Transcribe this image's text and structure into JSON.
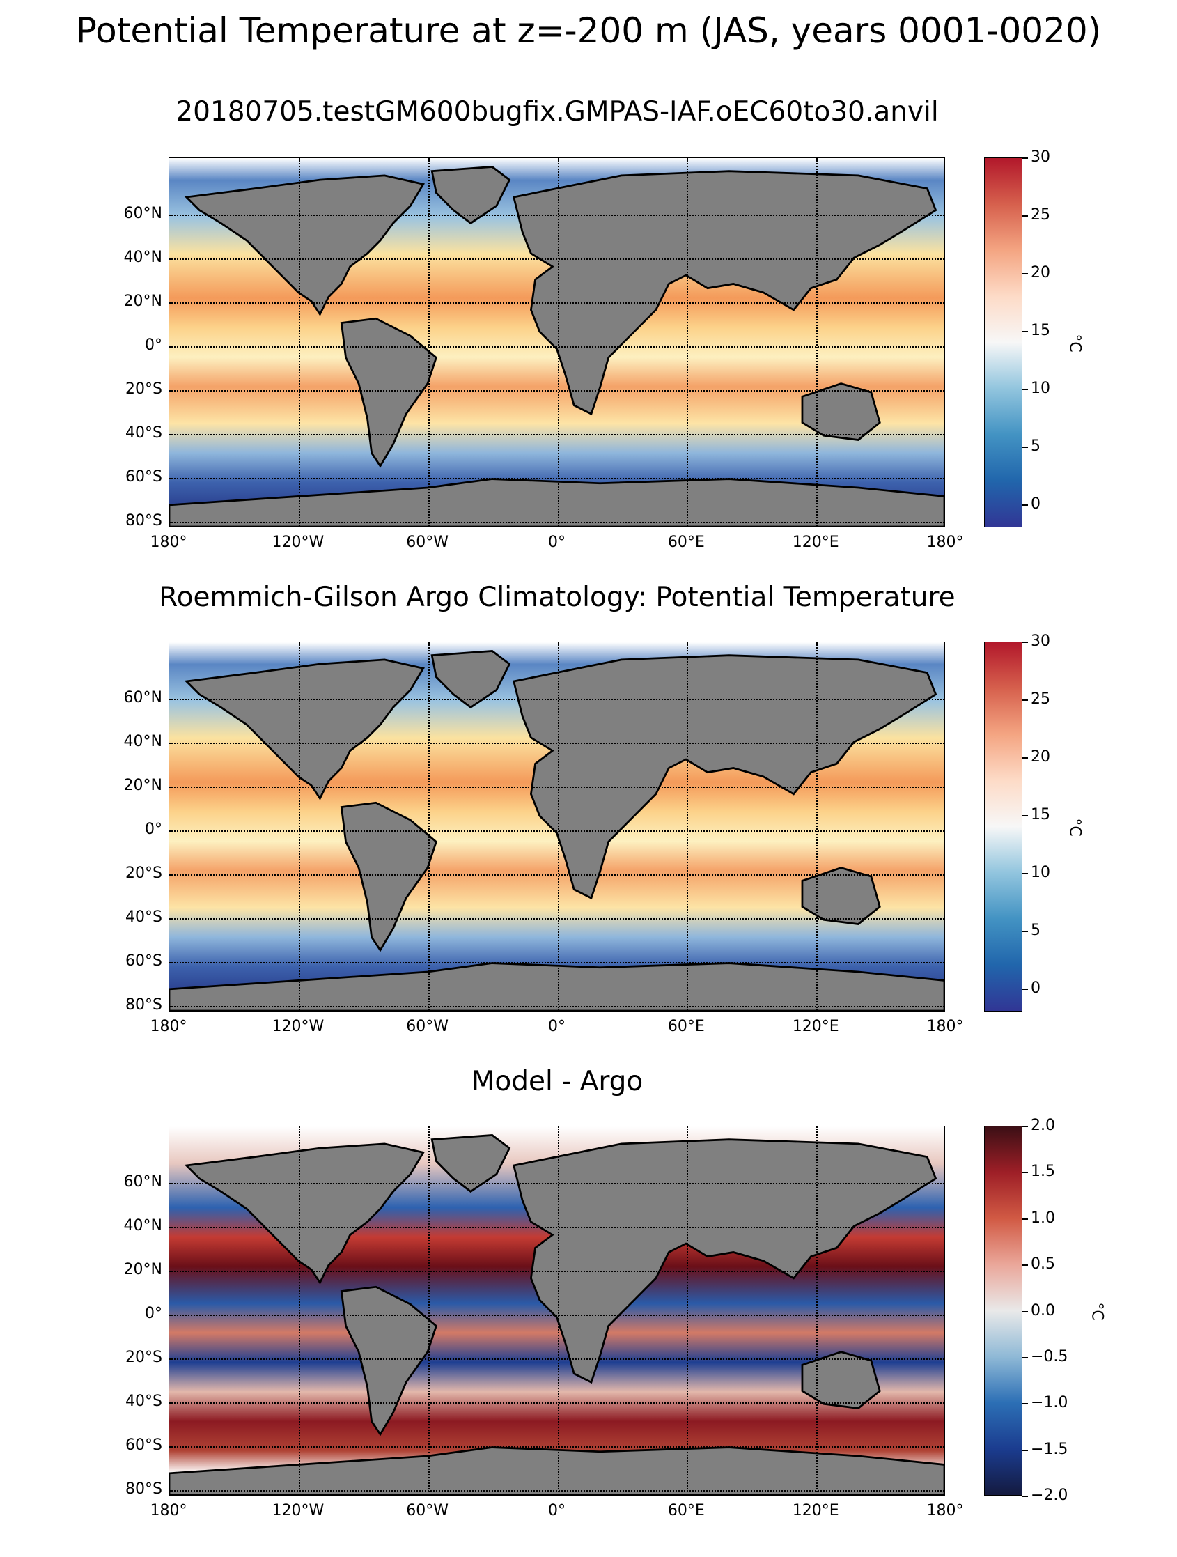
{
  "suptitle": "Potential Temperature at z=-200 m (JAS, years 0001-0020)",
  "panels": [
    {
      "title": "20180705.testGM600bugfix.GMPAS-IAF.oEC60to30.anvil",
      "colormap": "temperature",
      "colorbar": {
        "ticks": [
          "30",
          "25",
          "20",
          "15",
          "10",
          "5",
          "0"
        ],
        "unit": "°C",
        "colors": [
          "#b2182b",
          "#d6604d",
          "#f4a582",
          "#fddbc7",
          "#f7f7f7",
          "#92c5de",
          "#4393c3",
          "#2166ac",
          "#313695"
        ]
      }
    },
    {
      "title": "Roemmich-Gilson Argo Climatology: Potential Temperature",
      "colormap": "temperature",
      "colorbar": {
        "ticks": [
          "30",
          "25",
          "20",
          "15",
          "10",
          "5",
          "0"
        ],
        "unit": "°C",
        "colors": [
          "#b2182b",
          "#d6604d",
          "#f4a582",
          "#fddbc7",
          "#f7f7f7",
          "#92c5de",
          "#4393c3",
          "#2166ac",
          "#313695"
        ]
      }
    },
    {
      "title": "Model - Argo",
      "colormap": "difference",
      "colorbar": {
        "ticks": [
          "2.0",
          "1.5",
          "1.0",
          "0.5",
          "0.0",
          "−0.5",
          "−1.0",
          "−1.5",
          "−2.0"
        ],
        "unit": "°C",
        "colors": [
          "#3b0f15",
          "#9e1f27",
          "#d15a44",
          "#eaa79a",
          "#e9e9e9",
          "#8fb9d6",
          "#2c6fb5",
          "#1b3c8f",
          "#141a3f"
        ]
      }
    }
  ],
  "lat_labels": [
    "60°N",
    "40°N",
    "20°N",
    "0°",
    "20°S",
    "40°S",
    "60°S",
    "80°S"
  ],
  "lon_labels": [
    "180°",
    "120°W",
    "60°W",
    "0°",
    "60°E",
    "120°E",
    "180°"
  ],
  "land_color": "#808080"
}
